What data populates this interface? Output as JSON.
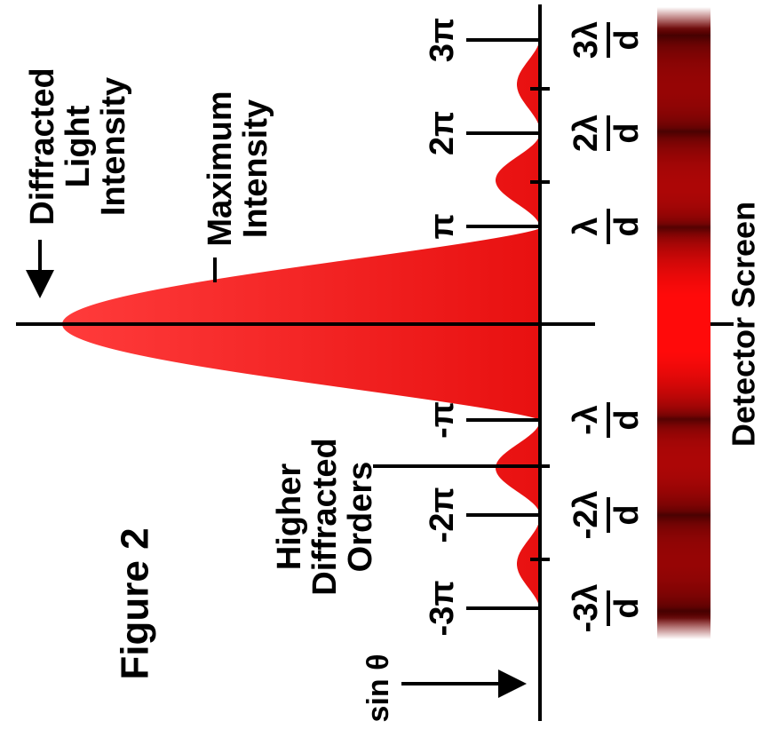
{
  "figure_label": "Figure 2",
  "axis_label": "sin θ",
  "annotations": {
    "intensity": [
      "Diffracted",
      "Light",
      "Intensity"
    ],
    "maximum": [
      "Maximum",
      "Intensity"
    ],
    "orders": [
      "Higher",
      "Diffracted",
      "Orders"
    ],
    "screen": "Detector Screen"
  },
  "positions": [
    {
      "phase": "3π",
      "numerator": "3λ",
      "denominator": "d"
    },
    {
      "phase": "2π",
      "numerator": "2λ",
      "denominator": "d"
    },
    {
      "phase": "π",
      "numerator": "λ",
      "denominator": "d"
    },
    {
      "phase": "-π",
      "numerator": "-λ",
      "denominator": "d"
    },
    {
      "phase": "-2π",
      "numerator": "-2λ",
      "denominator": "d"
    },
    {
      "phase": "-3π",
      "numerator": "-3λ",
      "denominator": "d"
    }
  ]
}
